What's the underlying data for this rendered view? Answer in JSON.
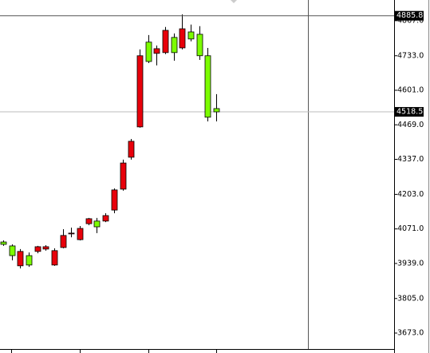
{
  "chart_data": {
    "type": "candlestick",
    "up_color": "#e8000b",
    "down_color": "#7cfc00",
    "open": [
      4021,
      4006,
      3930,
      3969,
      3985,
      3994,
      3933,
      4000,
      4052,
      4030,
      4091,
      4101,
      4101,
      4143,
      4223,
      4345,
      4461,
      4785,
      4742,
      4745,
      4803,
      4763,
      4824,
      4815,
      4733,
      4531
    ],
    "high": [
      4027,
      4012,
      3994,
      3981,
      4006,
      4009,
      3997,
      4070,
      4076,
      4082,
      4113,
      4113,
      4131,
      4226,
      4336,
      4415,
      4757,
      4812,
      4772,
      4843,
      4818,
      4891,
      4852,
      4846,
      4763,
      4586
    ],
    "low": [
      4006,
      3951,
      3920,
      3926,
      3978,
      3988,
      3930,
      3997,
      4039,
      4027,
      4085,
      4055,
      4097,
      4131,
      4217,
      4336,
      4458,
      4705,
      4696,
      4739,
      4714,
      4757,
      4788,
      4717,
      4482,
      4482
    ],
    "close": [
      4012,
      3969,
      3985,
      3933,
      4003,
      4003,
      3988,
      4046,
      4055,
      4073,
      4110,
      4079,
      4122,
      4220,
      4323,
      4406,
      4733,
      4711,
      4760,
      4830,
      4745,
      4836,
      4797,
      4733,
      4498,
      4518.5
    ],
    "ylim": [
      3612,
      4946
    ],
    "yticks": [
      {
        "value": 3673,
        "label": "3673.0"
      },
      {
        "value": 3805,
        "label": "3805.0"
      },
      {
        "value": 3939,
        "label": "3939.0"
      },
      {
        "value": 4071,
        "label": "4071.0"
      },
      {
        "value": 4203,
        "label": "4203.0"
      },
      {
        "value": 4337,
        "label": "4337.0"
      },
      {
        "value": 4469,
        "label": "4469.0"
      },
      {
        "value": 4601,
        "label": "4601.0"
      },
      {
        "value": 4733,
        "label": "4733.0"
      },
      {
        "value": 4867,
        "label": "4867.0"
      }
    ],
    "last_price": 4518.5,
    "crosshair": 4885.8
  }
}
